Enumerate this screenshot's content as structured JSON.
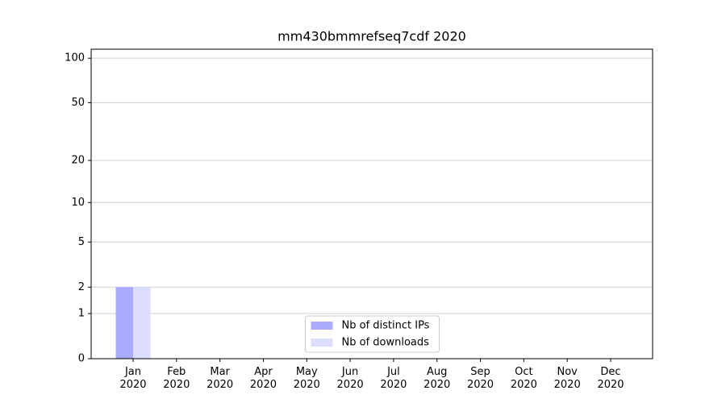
{
  "chart_data": {
    "type": "bar",
    "title": "mm430bmmrefseq7cdf 2020",
    "categories": [
      "Jan 2020",
      "Feb 2020",
      "Mar 2020",
      "Apr 2020",
      "May 2020",
      "Jun 2020",
      "Jul 2020",
      "Aug 2020",
      "Sep 2020",
      "Oct 2020",
      "Nov 2020",
      "Dec 2020"
    ],
    "series": [
      {
        "name": "Nb of distinct IPs",
        "color": "#aaaaff",
        "values": [
          2,
          0,
          0,
          0,
          0,
          0,
          0,
          0,
          0,
          0,
          0,
          0
        ]
      },
      {
        "name": "Nb of downloads",
        "color": "#ddddff",
        "values": [
          2,
          0,
          0,
          0,
          0,
          0,
          0,
          0,
          0,
          0,
          0,
          0
        ]
      }
    ],
    "y_scale": "log1p",
    "ylim": [
      0,
      115
    ],
    "yticks": [
      0,
      1,
      2,
      5,
      10,
      20,
      50,
      100
    ],
    "grid": true,
    "legend": "lower center"
  }
}
